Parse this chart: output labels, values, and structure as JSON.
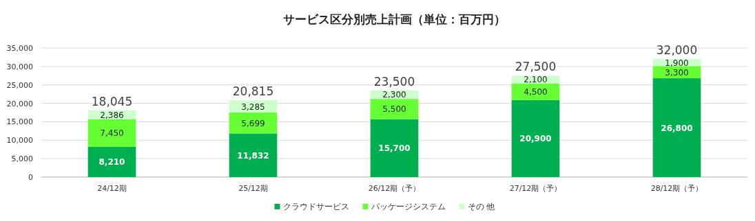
{
  "chart_data": {
    "type": "bar",
    "title": "サービス区分別売上計画（単位：百万円）",
    "categories": [
      "24/12期",
      "25/12期",
      "26/12期（予）",
      "27/12期（予）",
      "28/12期（予）"
    ],
    "stacked": true,
    "series": [
      {
        "name": "クラウドサービス",
        "color": "#00b050",
        "values": [
          8210,
          11832,
          15700,
          20900,
          26800
        ],
        "value_labels": [
          "8,210",
          "11,832",
          "15,700",
          "20,900",
          "26,800"
        ]
      },
      {
        "name": "パッケージシステム",
        "color": "#66ff33",
        "values": [
          7450,
          5699,
          5500,
          4500,
          3300
        ],
        "value_labels": [
          "7,450",
          "5,699",
          "5,500",
          "4,500",
          "3,300"
        ]
      },
      {
        "name": "その 他",
        "color": "#ccffcc",
        "values": [
          2386,
          3285,
          2300,
          2100,
          1900
        ],
        "value_labels": [
          "2,386",
          "3,285",
          "2,300",
          "2,100",
          "1,900"
        ]
      }
    ],
    "ylim": [
      0,
      35000
    ],
    "yticks": [
      {
        "value": 0,
        "label": "0"
      },
      {
        "value": 5000,
        "label": "5,000"
      },
      {
        "value": 10000,
        "label": "10,000"
      },
      {
        "value": 15000,
        "label": "15,000"
      },
      {
        "value": 20000,
        "label": "20,000"
      },
      {
        "value": 25000,
        "label": "25,000"
      },
      {
        "value": 30000,
        "label": "30,000"
      },
      {
        "value": 35000,
        "label": "35,000"
      }
    ],
    "grid": "y",
    "legend": "bottom",
    "totals": [
      "18,045",
      "20,815",
      "23,500",
      "27,500",
      "32,000"
    ]
  }
}
